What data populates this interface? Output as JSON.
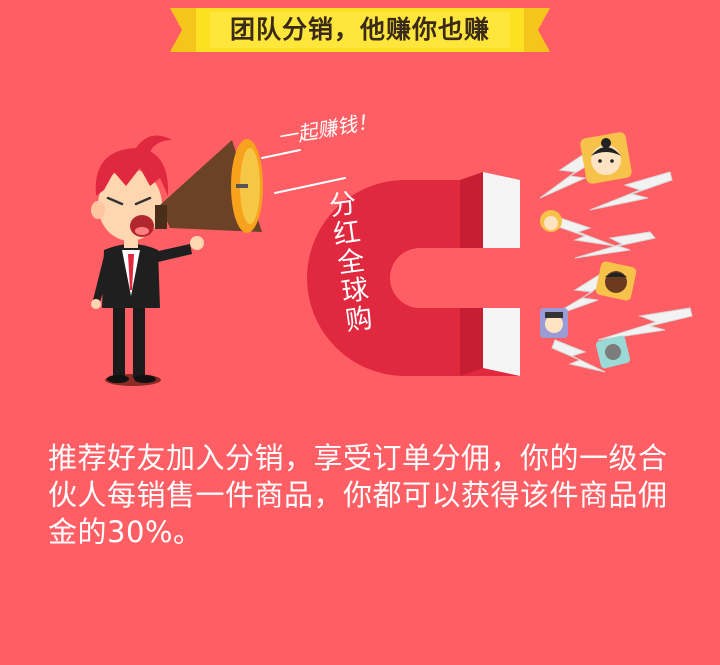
{
  "banner": {
    "title": "团队分销，他赚你也赚"
  },
  "illustration": {
    "slogan": "一起赚钱！",
    "magnet_text": [
      "分",
      "红",
      "全",
      "球",
      "购"
    ],
    "icons": [
      "man-shouting-icon",
      "megaphone-icon",
      "magnet-icon",
      "avatar-icon",
      "lightning-icon"
    ]
  },
  "description": {
    "text": "推荐好友加入分销，享受订单分佣，你的一级合伙人每销售一件商品，你都可以获得该件商品佣金的30%。"
  },
  "colors": {
    "background": "#ff5f64",
    "banner_yellow": "#fde021",
    "magnet_red": "#e0283e",
    "text": "#ffffff"
  }
}
